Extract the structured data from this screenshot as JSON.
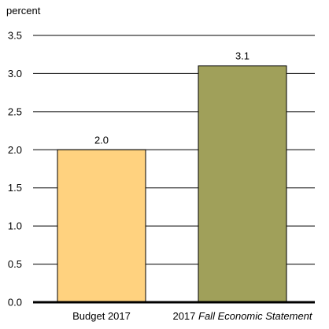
{
  "chart_data": {
    "type": "bar",
    "ylabel": "percent",
    "categories": [
      "Budget 2017",
      "2017 Fall Economic Statement"
    ],
    "category_styles": [
      "normal",
      "mixed"
    ],
    "category_parts": [
      [
        {
          "text": "Budget 2017",
          "italic": false
        }
      ],
      [
        {
          "text": "2017 ",
          "italic": false
        },
        {
          "text": "Fall Economic Statement",
          "italic": true
        }
      ]
    ],
    "values": [
      2.0,
      3.1
    ],
    "data_labels": [
      "2.0",
      "3.1"
    ],
    "colors": [
      "#FFD27F",
      "#A0A05A"
    ],
    "yticks": [
      "0.0",
      "0.5",
      "1.0",
      "1.5",
      "2.0",
      "2.5",
      "3.0",
      "3.5"
    ],
    "ylim": [
      0,
      3.5
    ],
    "grid": true,
    "legend": "none"
  }
}
